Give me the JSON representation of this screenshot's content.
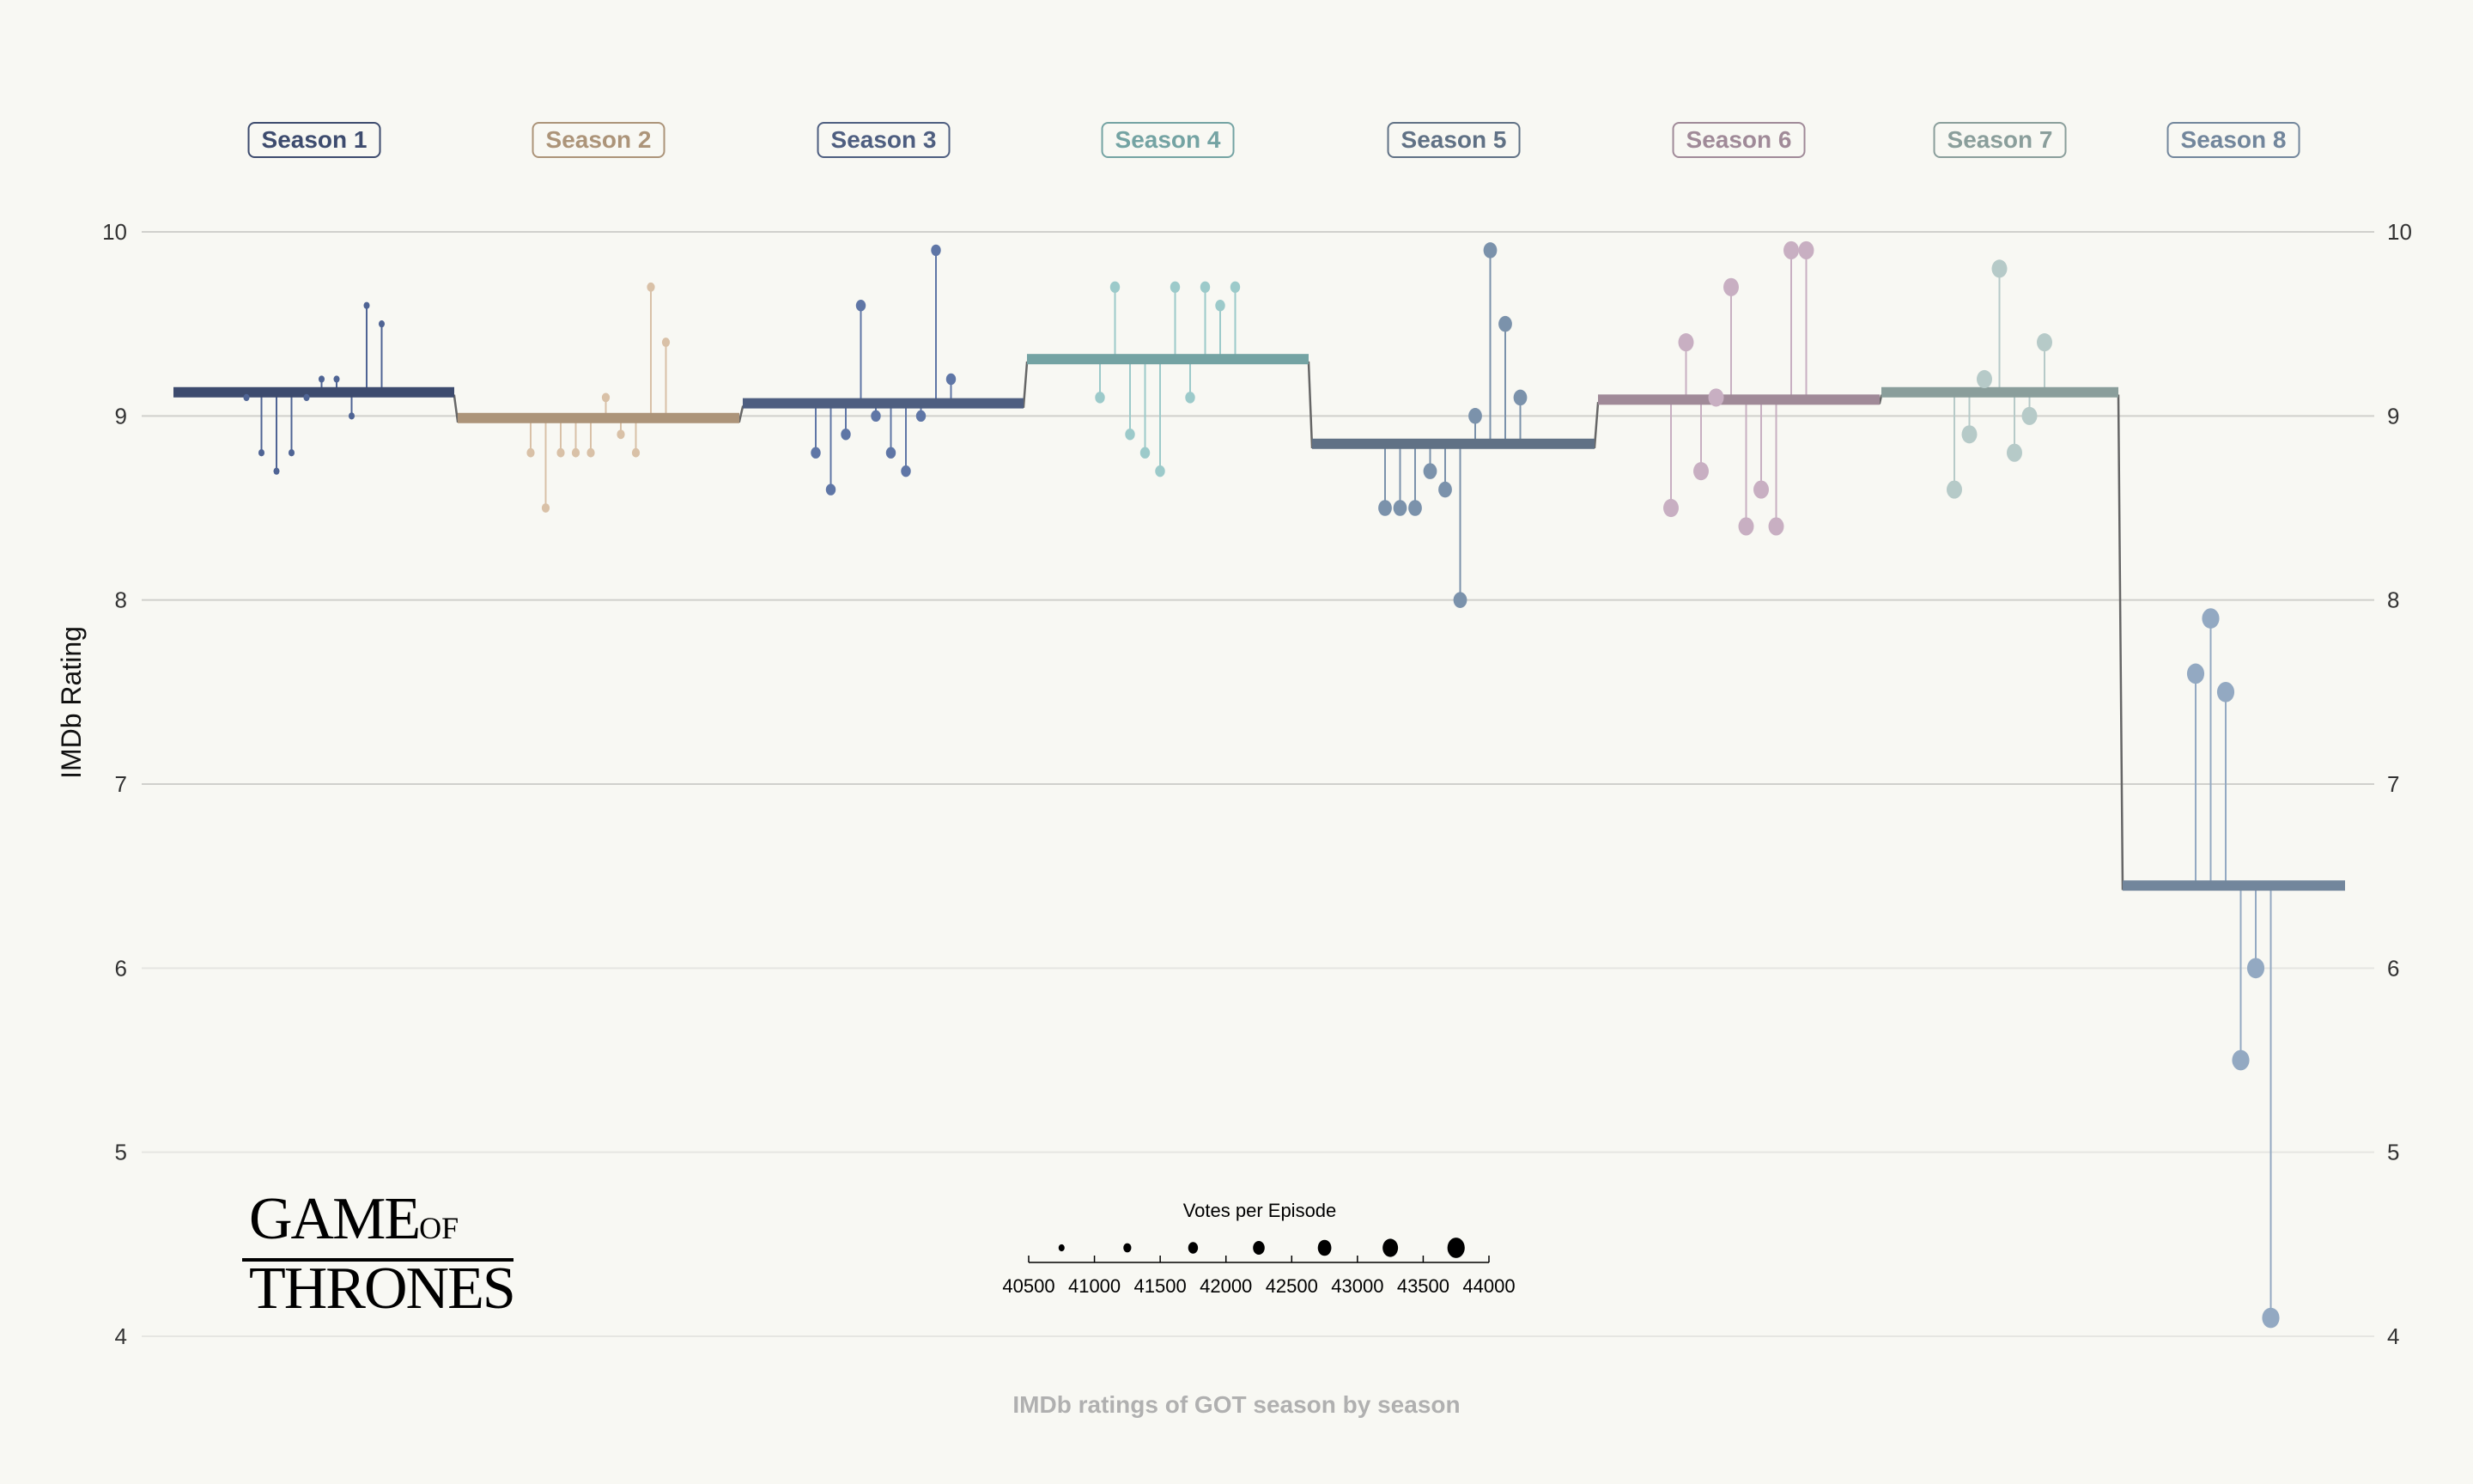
{
  "chart_data": {
    "type": "scatter",
    "subtype": "lollipop-step",
    "title": "IMDb ratings of GOT season by season",
    "ylabel": "IMDb Rating",
    "xlabel": "",
    "ylim": [
      4,
      10
    ],
    "yticks": [
      4,
      5,
      6,
      7,
      8,
      9,
      10
    ],
    "grid": true,
    "legend": {
      "title": "Votes per Episode",
      "position": "bottom-center",
      "ticks": [
        "40500",
        "41000",
        "41500",
        "42000",
        "42500",
        "43000",
        "43500",
        "44000"
      ],
      "breaks": [
        40750,
        41250,
        41750,
        42250,
        42750,
        43250,
        43750
      ],
      "range": [
        40500,
        44000
      ]
    },
    "seasons": [
      {
        "name": "Season 1",
        "color": "#3d4b6e",
        "dot": "#4f6494",
        "mean": 9.11,
        "votes_level": 40750,
        "ratings": [
          9.1,
          8.8,
          8.7,
          8.8,
          9.1,
          9.2,
          9.2,
          9.0,
          9.6,
          9.5
        ]
      },
      {
        "name": "Season 2",
        "color": "#ac9479",
        "dot": "#d9c1a7",
        "mean": 8.97,
        "votes_level": 41250,
        "ratings": [
          8.8,
          8.5,
          8.8,
          8.8,
          8.8,
          9.1,
          8.9,
          8.8,
          9.7,
          9.4
        ]
      },
      {
        "name": "Season 3",
        "color": "#4e5e80",
        "dot": "#5f76a6",
        "mean": 9.05,
        "votes_level": 41750,
        "ratings": [
          8.8,
          8.6,
          8.9,
          9.6,
          9.0,
          8.8,
          8.7,
          9.0,
          9.9,
          9.2
        ]
      },
      {
        "name": "Season 4",
        "color": "#74a3a3",
        "dot": "#9ccaca",
        "mean": 9.29,
        "votes_level": 41750,
        "ratings": [
          9.1,
          9.7,
          8.9,
          8.8,
          8.7,
          9.7,
          9.1,
          9.7,
          9.6,
          9.7
        ]
      },
      {
        "name": "Season 5",
        "color": "#607185",
        "dot": "#7b92ab",
        "mean": 8.83,
        "votes_level": 42750,
        "ratings": [
          8.5,
          8.5,
          8.5,
          8.7,
          8.6,
          8.0,
          9.0,
          9.9,
          9.5,
          9.1
        ]
      },
      {
        "name": "Season 6",
        "color": "#a08a98",
        "dot": "#c8afc2",
        "mean": 9.07,
        "votes_level": 43250,
        "ratings": [
          8.5,
          9.4,
          8.7,
          9.1,
          9.7,
          8.4,
          8.6,
          8.4,
          9.9,
          9.9
        ]
      },
      {
        "name": "Season 7",
        "color": "#8a9e9b",
        "dot": "#b6cac8",
        "mean": 9.11,
        "votes_level": 43250,
        "ratings": [
          8.6,
          8.9,
          9.2,
          9.8,
          8.8,
          9.0,
          9.4
        ]
      },
      {
        "name": "Season 8",
        "color": "#72869c",
        "dot": "#93a9c2",
        "mean": 6.43,
        "votes_level": 43750,
        "ratings": [
          7.6,
          7.9,
          7.5,
          5.5,
          6.0,
          4.1
        ]
      }
    ]
  },
  "caption": "IMDb ratings of GOT season by season",
  "logo": {
    "line1": "GAME",
    "of": "OF",
    "line2": "THRONES"
  }
}
